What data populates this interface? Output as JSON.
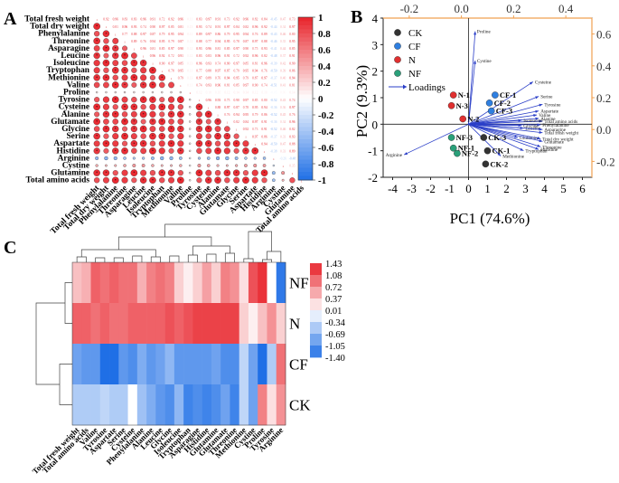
{
  "panels": {
    "a": "A",
    "b": "B",
    "c": "C"
  },
  "palette": {
    "pos": "#e8222a",
    "neg": "#1f6fe6",
    "mid": "#ffffff",
    "ink": "#111111",
    "axis_top": "#f0a050"
  },
  "chart_data": [
    {
      "type": "heatmap",
      "subtype": "correlation-triangle",
      "panel": "A",
      "variables": [
        "Total fresh weight",
        "Total dry weight",
        "Phenylalanine",
        "Threonine",
        "Asparagine",
        "Leucine",
        "Isoleucine",
        "Tryptophan",
        "Methionine",
        "Valine",
        "Proline",
        "Tyrosine",
        "Cysteine",
        "Alanine",
        "Glutamate",
        "Glycine",
        "Serine",
        "Aspartate",
        "Histidine",
        "Arginine",
        "Cystine",
        "Glutamine",
        "Total amino acids"
      ],
      "colorbar": {
        "min": -1,
        "max": 1,
        "ticks": [
          "1",
          "0.8",
          "0.6",
          "0.4",
          "0.2",
          "0",
          "-0.2",
          "-0.4",
          "-0.6",
          "-0.8",
          "-1"
        ]
      },
      "note": "Lower triangle: coloured circles sized by |r|; upper triangle: r values as small numbers. Proline and Arginine show weak/negative correlations with the other variables."
    },
    {
      "type": "scatter",
      "subtype": "pca-biplot",
      "panel": "B",
      "xlabel": "PC1 (74.6%)",
      "ylabel": "PC2 (9.3%)",
      "xlim": [
        -4.5,
        6.5
      ],
      "ylim": [
        -2,
        4
      ],
      "x_ticks": [
        "-4",
        "-3",
        "-2",
        "-1",
        "0",
        "1",
        "2",
        "3",
        "4",
        "5",
        "6"
      ],
      "y_ticks": [
        "-2",
        "-1",
        "0",
        "1",
        "2",
        "3",
        "4"
      ],
      "top_ticks": [
        "-0.2",
        "0.0",
        "0.2",
        "0.4"
      ],
      "right_ticks": [
        "-0.2",
        "0.0",
        "0.2",
        "0.4",
        "0.6"
      ],
      "legend": [
        {
          "name": "CK",
          "color": "#333333"
        },
        {
          "name": "CF",
          "color": "#2f7fe0"
        },
        {
          "name": "N",
          "color": "#e03030"
        },
        {
          "name": "NF",
          "color": "#2aa07a"
        }
      ],
      "loadings_label": "Loadings",
      "samples": [
        {
          "label": "N-1",
          "group": "N",
          "x": -0.8,
          "y": 1.1
        },
        {
          "label": "N-3",
          "group": "N",
          "x": -0.9,
          "y": 0.7
        },
        {
          "label": "N-2",
          "group": "N",
          "x": -0.3,
          "y": 0.2
        },
        {
          "label": "CF-1",
          "group": "CF",
          "x": 1.4,
          "y": 1.1
        },
        {
          "label": "CF-2",
          "group": "CF",
          "x": 1.1,
          "y": 0.8
        },
        {
          "label": "CF-3",
          "group": "CF",
          "x": 1.2,
          "y": 0.5
        },
        {
          "label": "NF-3",
          "group": "NF",
          "x": -0.9,
          "y": -0.5
        },
        {
          "label": "NF-1",
          "group": "NF",
          "x": -0.8,
          "y": -0.9
        },
        {
          "label": "NF-2",
          "group": "NF",
          "x": -0.6,
          "y": -1.1
        },
        {
          "label": "CK-3",
          "group": "CK",
          "x": 0.8,
          "y": -0.5
        },
        {
          "label": "CK-1",
          "group": "CK",
          "x": 1.0,
          "y": -1.0
        },
        {
          "label": "CK-2",
          "group": "CK",
          "x": 0.9,
          "y": -1.5
        }
      ],
      "loadings": [
        {
          "label": "Proline",
          "x": 0.35,
          "y": 3.5
        },
        {
          "label": "Cystine",
          "x": 0.35,
          "y": 2.4
        },
        {
          "label": "Cysteine",
          "x": 3.4,
          "y": 1.6
        },
        {
          "label": "Serine",
          "x": 3.7,
          "y": 1.05
        },
        {
          "label": "Tyrosine",
          "x": 3.9,
          "y": 0.75
        },
        {
          "label": "Aspartate",
          "x": 3.7,
          "y": 0.5
        },
        {
          "label": "Valine",
          "x": 3.6,
          "y": 0.35
        },
        {
          "label": "Alanine",
          "x": 3.7,
          "y": 0.22
        },
        {
          "label": "Total amino acids",
          "x": 3.9,
          "y": 0.12
        },
        {
          "label": "Isoleucine",
          "x": 2.8,
          "y": 0.15
        },
        {
          "label": "Phenylalanine",
          "x": 3.8,
          "y": -0.02
        },
        {
          "label": "Glycine",
          "x": 2.8,
          "y": -0.05
        },
        {
          "label": "Leucine",
          "x": 2.9,
          "y": -0.15
        },
        {
          "label": "Asparagine",
          "x": 3.9,
          "y": -0.2
        },
        {
          "label": "Total fresh weight",
          "x": 3.9,
          "y": -0.32
        },
        {
          "label": "Glutamine",
          "x": 2.6,
          "y": -0.5
        },
        {
          "label": "Total dry weight",
          "x": 3.8,
          "y": -0.55
        },
        {
          "label": "Glutamate",
          "x": 3.9,
          "y": -0.65
        },
        {
          "label": "Threonine",
          "x": 3.8,
          "y": -0.85
        },
        {
          "label": "Histidine",
          "x": 3.7,
          "y": -0.95
        },
        {
          "label": "Tryptophan",
          "x": 2.9,
          "y": -1.0
        },
        {
          "label": "Methionine",
          "x": 1.7,
          "y": -1.2
        },
        {
          "label": "Arginine",
          "x": -3.4,
          "y": -1.15
        }
      ]
    },
    {
      "type": "heatmap",
      "subtype": "clustered",
      "panel": "C",
      "rows": [
        "NF",
        "N",
        "CF",
        "CK"
      ],
      "columns": [
        "Total fresh weight",
        "Total amino acids",
        "Valine",
        "Tyrosine",
        "Aspartate",
        "Serine",
        "Cysteine",
        "Phenylalanine",
        "Alanine",
        "Leucine",
        "Glycine",
        "Isoleucine",
        "Tryptophan",
        "Asparagine",
        "Histidine",
        "Glutamine",
        "Glutamate",
        "Threonine",
        "Methionine",
        "Cystine",
        "Proline",
        "Tyrosine",
        "Arginine"
      ],
      "values": [
        [
          0.4,
          0.5,
          1.0,
          0.9,
          1.0,
          0.9,
          0.9,
          0.5,
          0.8,
          0.9,
          0.8,
          0.3,
          0.1,
          0.3,
          0.6,
          0.3,
          0.8,
          0.7,
          0.2,
          1.1,
          1.3,
          0.0,
          -1.3
        ],
        [
          1.0,
          1.0,
          0.9,
          1.0,
          0.9,
          0.9,
          1.0,
          1.0,
          1.0,
          1.0,
          1.1,
          1.0,
          1.1,
          1.2,
          1.2,
          1.2,
          1.2,
          1.2,
          0.3,
          0.1,
          0.4,
          0.7,
          0.3
        ],
        [
          -0.9,
          -1.0,
          -1.0,
          -1.4,
          -1.4,
          -1.0,
          -1.1,
          -0.8,
          -1.0,
          -0.9,
          -0.7,
          -1.0,
          -1.0,
          -1.0,
          -1.0,
          -0.9,
          -1.1,
          -1.1,
          -0.4,
          -0.9,
          -1.4,
          -0.5,
          0.9
        ],
        [
          -0.5,
          -0.5,
          -0.5,
          -0.4,
          -0.5,
          -0.5,
          0.0,
          -0.6,
          -0.8,
          -1.0,
          -1.1,
          -0.7,
          -1.2,
          -1.1,
          -1.2,
          -1.1,
          -0.9,
          -1.2,
          -0.4,
          -0.9,
          0.8,
          0.2,
          0.7
        ]
      ],
      "colorbar": {
        "min": -1.4,
        "max": 1.43,
        "ticks": [
          "1.43",
          "1.08",
          "0.72",
          "0.37",
          "0.01",
          "-0.34",
          "-0.69",
          "-1.05",
          "-1.40"
        ]
      }
    }
  ]
}
